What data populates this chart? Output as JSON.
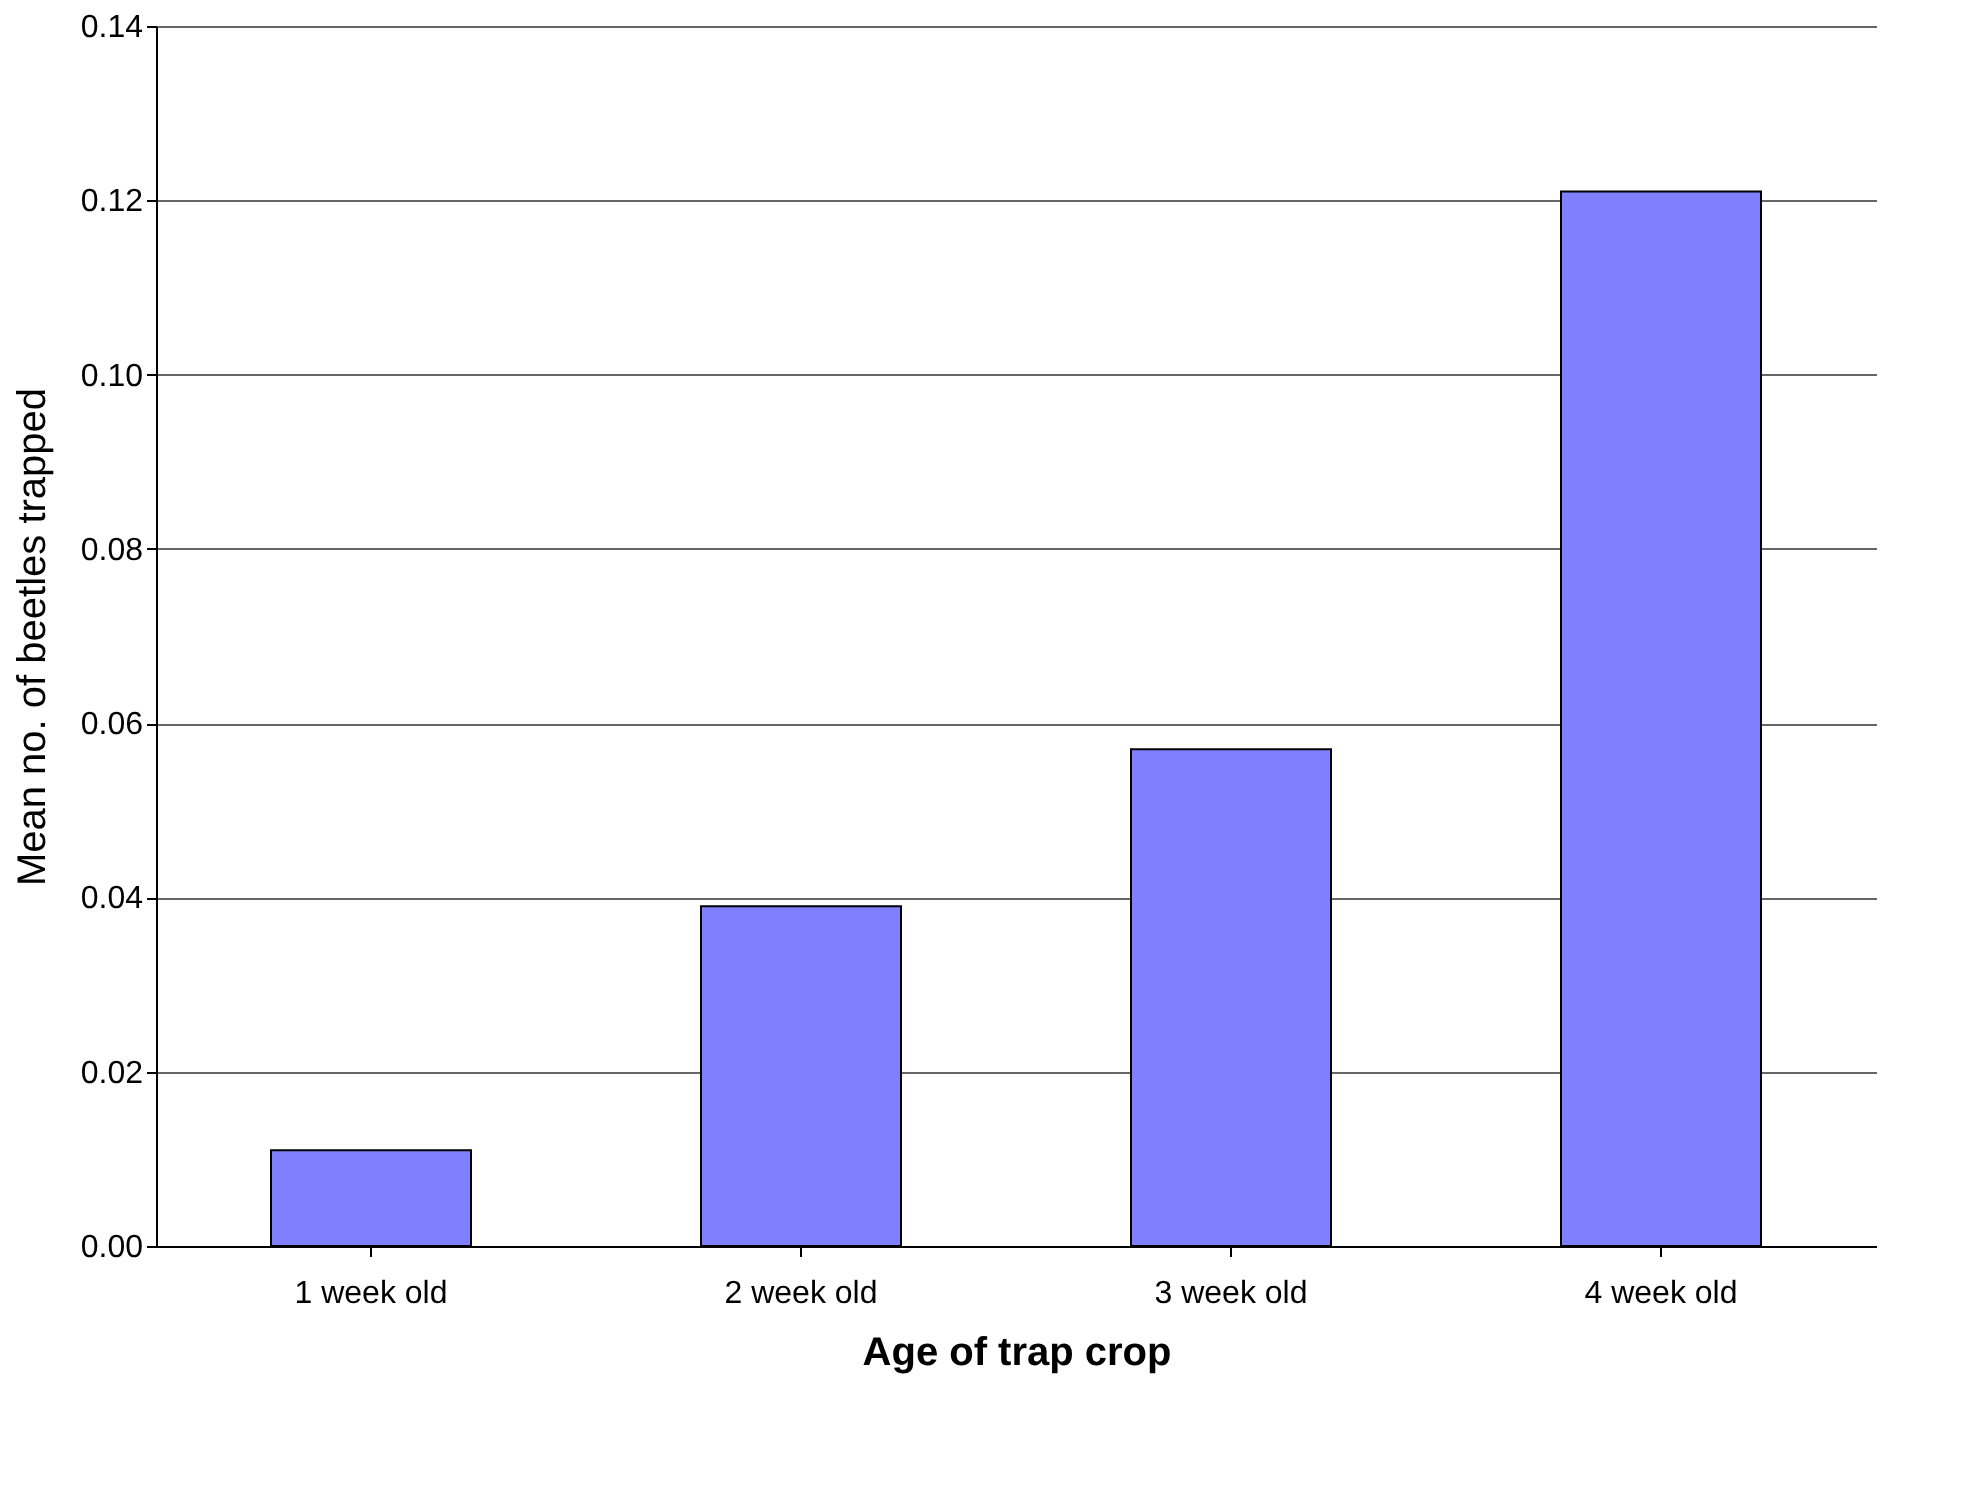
{
  "chart_data": {
    "type": "bar",
    "xlabel": "Age of trap crop",
    "ylabel": "Mean no. of beetles trapped",
    "categories": [
      "1 week old",
      "2 week old",
      "3 week old",
      "4 week old"
    ],
    "values": [
      0.011,
      0.039,
      0.057,
      0.121
    ],
    "color": "#8080ff",
    "ylim": [
      0,
      0.14
    ],
    "yticks": [
      {
        "value": 0,
        "label": "0.00"
      },
      {
        "value": 0.02,
        "label": "0.02"
      },
      {
        "value": 0.04,
        "label": "0.04"
      },
      {
        "value": 0.06,
        "label": "0.06"
      },
      {
        "value": 0.08,
        "label": "0.08"
      },
      {
        "value": 0.1,
        "label": "0.10"
      },
      {
        "value": 0.12,
        "label": "0.12"
      },
      {
        "value": 0.14,
        "label": "0.14"
      }
    ],
    "grid": "y"
  }
}
